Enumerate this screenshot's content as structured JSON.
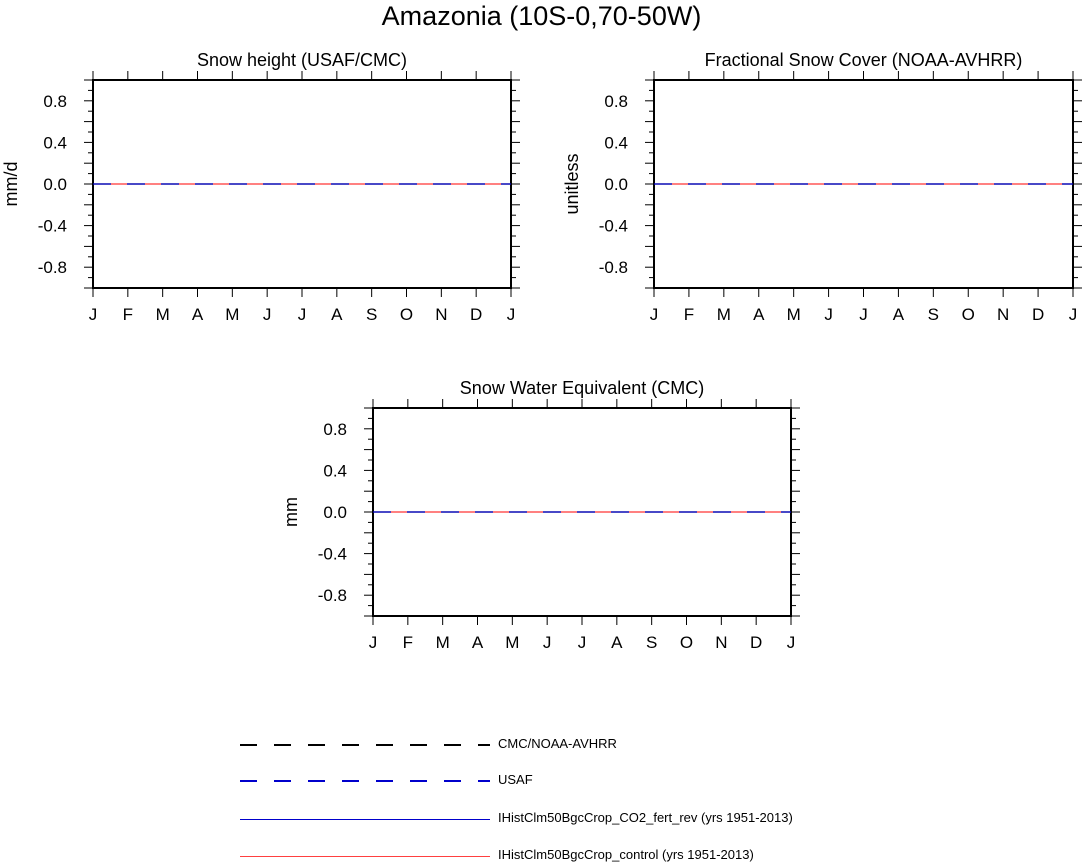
{
  "title": "Amazonia (10S-0,70-50W)",
  "chart_data": [
    {
      "type": "line",
      "title": "Snow height (USAF/CMC)",
      "ylabel": "mm/d",
      "xlabel": "",
      "x": [
        "J",
        "F",
        "M",
        "A",
        "M",
        "J",
        "J",
        "A",
        "S",
        "O",
        "N",
        "D",
        "J"
      ],
      "ylim": [
        -1.0,
        1.0
      ],
      "yticks": [
        "0.8",
        "0.4",
        "0.0",
        "-0.4",
        "-0.8"
      ],
      "series": [
        {
          "name": "CMC/NOAA-AVHRR",
          "values": [
            0,
            0,
            0,
            0,
            0,
            0,
            0,
            0,
            0,
            0,
            0,
            0,
            0
          ]
        },
        {
          "name": "USAF",
          "values": [
            0,
            0,
            0,
            0,
            0,
            0,
            0,
            0,
            0,
            0,
            0,
            0,
            0
          ]
        },
        {
          "name": "IHistClm50BgcCrop_CO2_fert_rev (yrs 1951-2013)",
          "values": [
            0,
            0,
            0,
            0,
            0,
            0,
            0,
            0,
            0,
            0,
            0,
            0,
            0
          ]
        },
        {
          "name": "IHistClm50BgcCrop_control (yrs 1951-2013)",
          "values": [
            0,
            0,
            0,
            0,
            0,
            0,
            0,
            0,
            0,
            0,
            0,
            0,
            0
          ]
        }
      ]
    },
    {
      "type": "line",
      "title": "Fractional Snow Cover (NOAA-AVHRR)",
      "ylabel": "unitless",
      "xlabel": "",
      "x": [
        "J",
        "F",
        "M",
        "A",
        "M",
        "J",
        "J",
        "A",
        "S",
        "O",
        "N",
        "D",
        "J"
      ],
      "ylim": [
        -1.0,
        1.0
      ],
      "yticks": [
        "0.8",
        "0.4",
        "0.0",
        "-0.4",
        "-0.8"
      ],
      "series": [
        {
          "name": "CMC/NOAA-AVHRR",
          "values": [
            0,
            0,
            0,
            0,
            0,
            0,
            0,
            0,
            0,
            0,
            0,
            0,
            0
          ]
        },
        {
          "name": "USAF",
          "values": [
            0,
            0,
            0,
            0,
            0,
            0,
            0,
            0,
            0,
            0,
            0,
            0,
            0
          ]
        },
        {
          "name": "IHistClm50BgcCrop_CO2_fert_rev (yrs 1951-2013)",
          "values": [
            0,
            0,
            0,
            0,
            0,
            0,
            0,
            0,
            0,
            0,
            0,
            0,
            0
          ]
        },
        {
          "name": "IHistClm50BgcCrop_control (yrs 1951-2013)",
          "values": [
            0,
            0,
            0,
            0,
            0,
            0,
            0,
            0,
            0,
            0,
            0,
            0,
            0
          ]
        }
      ]
    },
    {
      "type": "line",
      "title": "Snow Water Equivalent (CMC)",
      "ylabel": "mm",
      "xlabel": "",
      "x": [
        "J",
        "F",
        "M",
        "A",
        "M",
        "J",
        "J",
        "A",
        "S",
        "O",
        "N",
        "D",
        "J"
      ],
      "ylim": [
        -1.0,
        1.0
      ],
      "yticks": [
        "0.8",
        "0.4",
        "0.0",
        "-0.4",
        "-0.8"
      ],
      "series": [
        {
          "name": "CMC/NOAA-AVHRR",
          "values": [
            0,
            0,
            0,
            0,
            0,
            0,
            0,
            0,
            0,
            0,
            0,
            0,
            0
          ]
        },
        {
          "name": "USAF",
          "values": [
            0,
            0,
            0,
            0,
            0,
            0,
            0,
            0,
            0,
            0,
            0,
            0,
            0
          ]
        },
        {
          "name": "IHistClm50BgcCrop_CO2_fert_rev (yrs 1951-2013)",
          "values": [
            0,
            0,
            0,
            0,
            0,
            0,
            0,
            0,
            0,
            0,
            0,
            0,
            0
          ]
        },
        {
          "name": "IHistClm50BgcCrop_control (yrs 1951-2013)",
          "values": [
            0,
            0,
            0,
            0,
            0,
            0,
            0,
            0,
            0,
            0,
            0,
            0,
            0
          ]
        }
      ]
    }
  ],
  "legend": [
    {
      "label": "CMC/NOAA-AVHRR",
      "color": "#000000",
      "style": "dashed"
    },
    {
      "label": "USAF",
      "color": "#0000cc",
      "style": "dashed"
    },
    {
      "label": "IHistClm50BgcCrop_CO2_fert_rev (yrs 1951-2013)",
      "color": "#0000cc",
      "style": "solid"
    },
    {
      "label": "IHistClm50BgcCrop_control (yrs 1951-2013)",
      "color": "#ff0000",
      "style": "solid"
    }
  ]
}
